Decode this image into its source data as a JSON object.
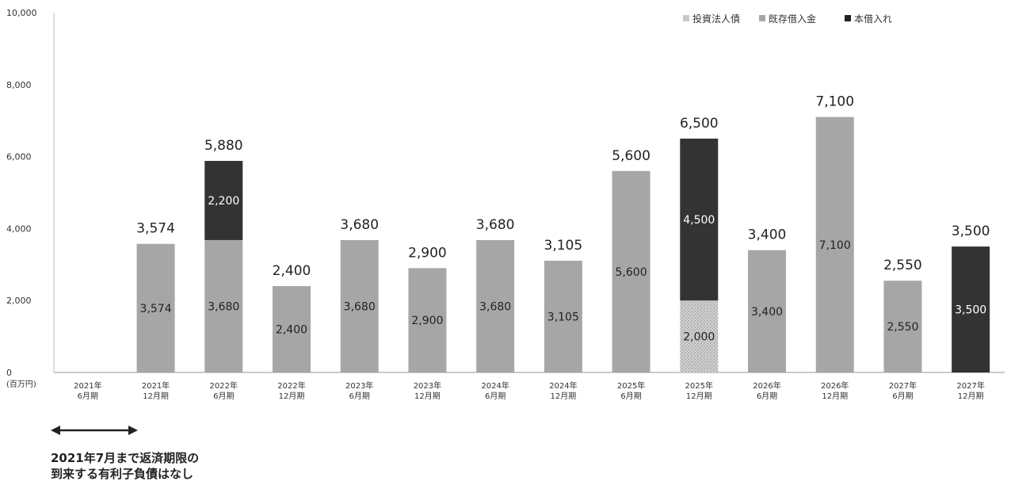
{
  "chart_data": {
    "type": "bar",
    "stacked": true,
    "unit_label": "(百万円)",
    "ylim": [
      0,
      10000
    ],
    "yticks": [
      "0",
      "2,000",
      "4,000",
      "6,000",
      "8,000",
      "10,000"
    ],
    "categories": [
      [
        "2021年",
        "6月期"
      ],
      [
        "2021年",
        "12月期"
      ],
      [
        "2022年",
        "6月期"
      ],
      [
        "2022年",
        "12月期"
      ],
      [
        "2023年",
        "6月期"
      ],
      [
        "2023年",
        "12月期"
      ],
      [
        "2024年",
        "6月期"
      ],
      [
        "2024年",
        "12月期"
      ],
      [
        "2025年",
        "6月期"
      ],
      [
        "2025年",
        "12月期"
      ],
      [
        "2026年",
        "6月期"
      ],
      [
        "2026年",
        "12月期"
      ],
      [
        "2027年",
        "6月期"
      ],
      [
        "2027年",
        "12月期"
      ]
    ],
    "series": [
      {
        "name": "投資法人債",
        "color": "#c8c8c8",
        "values": [
          0,
          0,
          0,
          0,
          0,
          0,
          0,
          0,
          0,
          2000,
          0,
          0,
          0,
          0
        ]
      },
      {
        "name": "既存借入金",
        "color": "#a6a6a6",
        "values": [
          0,
          3574,
          3680,
          2400,
          3680,
          2900,
          3680,
          3105,
          5600,
          0,
          3400,
          7100,
          2550,
          0
        ]
      },
      {
        "name": "本借入れ",
        "color": "#333333",
        "values": [
          0,
          0,
          2200,
          0,
          0,
          0,
          0,
          0,
          0,
          4500,
          0,
          0,
          0,
          3500
        ]
      }
    ],
    "totals": [
      "",
      "3,574",
      "5,880",
      "2,400",
      "3,680",
      "2,900",
      "3,680",
      "3,105",
      "5,600",
      "6,500",
      "3,400",
      "7,100",
      "2,550",
      "3,500"
    ],
    "legend_position": "top-right",
    "grid": false
  },
  "annotation": {
    "line1": "2021年7月まで返済期限の",
    "line2": "到来する有利子負債はなし"
  }
}
